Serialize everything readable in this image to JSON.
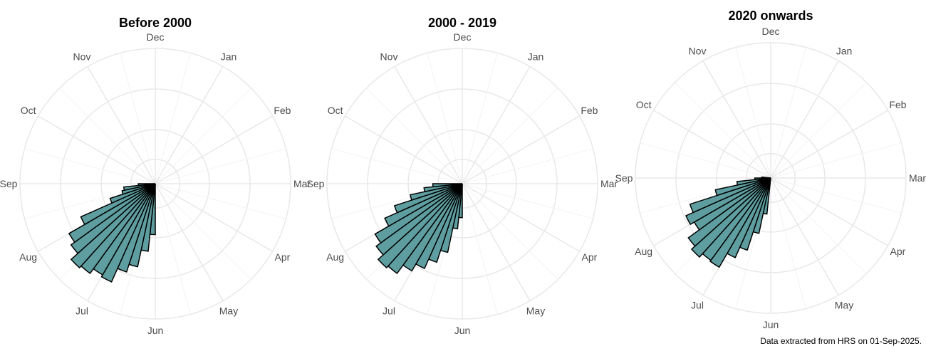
{
  "caption": "Data extracted from HRS on 01-Sep-2025.",
  "style": {
    "bar_fill": "#5f9ea0",
    "bar_stroke": "#000000",
    "grid": "#e8e8e8"
  },
  "chart_data": [
    {
      "type": "polar-bar",
      "title": "Before 2000",
      "month_labels": [
        "Jan",
        "Feb",
        "Mar",
        "Apr",
        "May",
        "Jun",
        "Jul",
        "Aug",
        "Sep",
        "Oct",
        "Nov",
        "Dec"
      ],
      "bins_start_angle_deg": [
        180,
        186,
        192,
        198,
        204,
        210,
        216,
        222,
        228,
        234,
        240,
        246,
        252,
        258,
        264
      ],
      "values": [
        0.45,
        0.6,
        0.75,
        0.82,
        0.95,
        0.93,
        0.98,
        1.0,
        0.92,
        0.88,
        0.72,
        0.42,
        0.3,
        0.28,
        0.15
      ],
      "rlim": [
        0,
        1.1
      ]
    },
    {
      "type": "polar-bar",
      "title": "2000 - 2019",
      "month_labels": [
        "Jan",
        "Feb",
        "Mar",
        "Apr",
        "May",
        "Jun",
        "Jul",
        "Aug",
        "Sep",
        "Oct",
        "Nov",
        "Dec"
      ],
      "bins_start_angle_deg": [
        180,
        186,
        192,
        198,
        204,
        210,
        216,
        222,
        228,
        234,
        240,
        246,
        252,
        258,
        264
      ],
      "values": [
        0.3,
        0.4,
        0.62,
        0.73,
        0.82,
        0.89,
        0.98,
        1.0,
        0.94,
        0.89,
        0.75,
        0.63,
        0.47,
        0.34,
        0.26
      ],
      "rlim": [
        0,
        1.1
      ]
    },
    {
      "type": "polar-bar",
      "title": "2020 onwards",
      "month_labels": [
        "Jan",
        "Feb",
        "Mar",
        "Apr",
        "May",
        "Jun",
        "Jul",
        "Aug",
        "Sep",
        "Oct",
        "Nov",
        "Dec"
      ],
      "bins_start_angle_deg": [
        186,
        192,
        198,
        204,
        210,
        216,
        222,
        228,
        234,
        240,
        246,
        252,
        258,
        264,
        270
      ],
      "values": [
        0.32,
        0.5,
        0.67,
        0.77,
        0.91,
        0.9,
        0.94,
        0.9,
        0.78,
        0.82,
        0.75,
        0.5,
        0.3,
        0.14,
        0.08
      ],
      "rlim": [
        0,
        1.1
      ]
    }
  ]
}
